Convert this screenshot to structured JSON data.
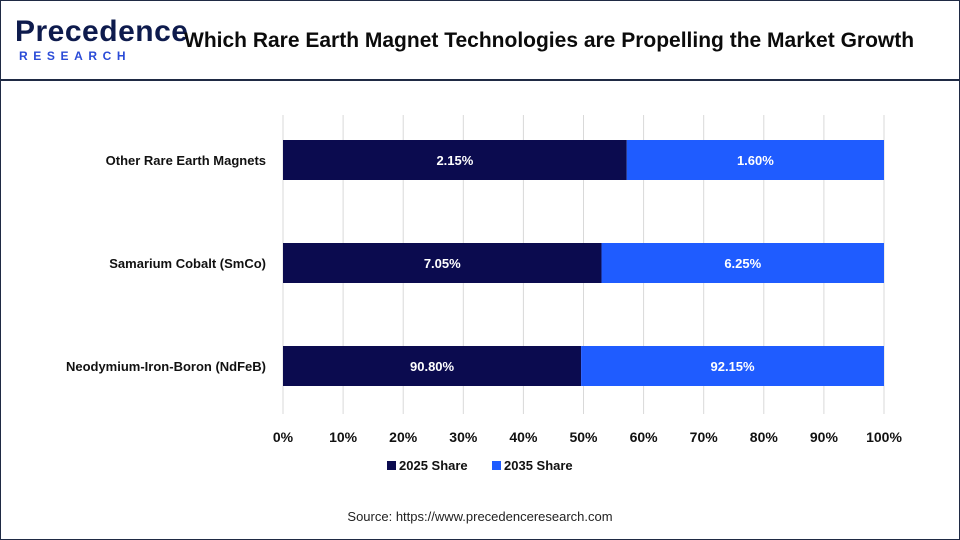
{
  "header": {
    "logo_top": "Precedence",
    "logo_bottom": "RESEARCH",
    "title": "Which Rare Earth Magnet Technologies are Propelling the Market Growth"
  },
  "chart_data": {
    "type": "bar",
    "orientation": "horizontal",
    "stacked_percent": true,
    "categories": [
      "Other Rare Earth Magnets",
      "Samarium Cobalt (SmCo)",
      "Neodymium-Iron-Boron (NdFeB)"
    ],
    "series": [
      {
        "name": "2025 Share",
        "values": [
          2.15,
          7.05,
          90.8
        ],
        "labels": [
          "2.15%",
          "7.05%",
          "90.80%"
        ],
        "color": "#0b0b4f"
      },
      {
        "name": "2035 Share",
        "values": [
          1.6,
          6.25,
          92.15
        ],
        "labels": [
          "1.60%",
          "6.25%",
          "92.15%"
        ],
        "color": "#1f5cff"
      }
    ],
    "segment_fraction_2025": [
      0.572,
      0.53,
      0.496
    ],
    "x_ticks": [
      "0%",
      "10%",
      "20%",
      "30%",
      "40%",
      "50%",
      "60%",
      "70%",
      "80%",
      "90%",
      "100%"
    ],
    "xlim": [
      0,
      100
    ],
    "grid": true,
    "legend_position": "bottom"
  },
  "footer": {
    "source": "Source: https://www.precedenceresearch.com"
  }
}
